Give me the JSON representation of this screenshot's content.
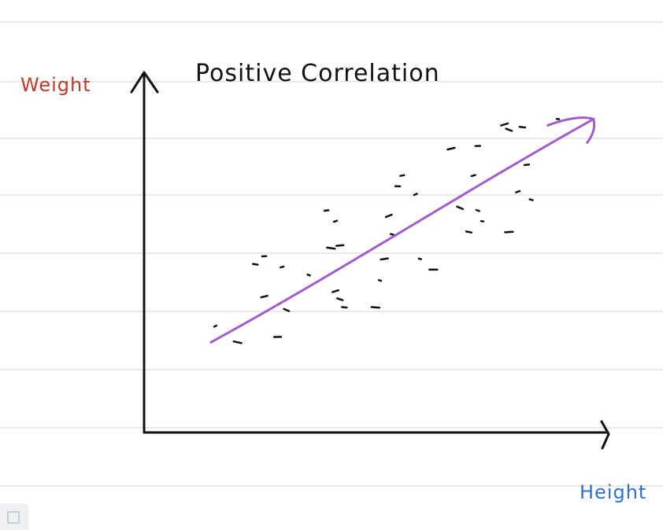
{
  "chart_data": {
    "type": "scatter",
    "title": "Positive Correlation",
    "xlabel": "Height",
    "ylabel": "Weight",
    "xlim": [
      0,
      100
    ],
    "ylim": [
      0,
      100
    ],
    "grid": false,
    "points": [
      {
        "x": 13,
        "y": 22
      },
      {
        "x": 18,
        "y": 16
      },
      {
        "x": 27,
        "y": 18
      },
      {
        "x": 24,
        "y": 33
      },
      {
        "x": 29,
        "y": 28
      },
      {
        "x": 22,
        "y": 45
      },
      {
        "x": 24,
        "y": 48
      },
      {
        "x": 28,
        "y": 44
      },
      {
        "x": 34,
        "y": 41
      },
      {
        "x": 39,
        "y": 51
      },
      {
        "x": 41,
        "y": 52
      },
      {
        "x": 40,
        "y": 35
      },
      {
        "x": 41,
        "y": 32
      },
      {
        "x": 42,
        "y": 29
      },
      {
        "x": 38,
        "y": 65
      },
      {
        "x": 40,
        "y": 61
      },
      {
        "x": 50,
        "y": 39
      },
      {
        "x": 49,
        "y": 29
      },
      {
        "x": 51,
        "y": 47
      },
      {
        "x": 52,
        "y": 63
      },
      {
        "x": 53,
        "y": 56
      },
      {
        "x": 54,
        "y": 74
      },
      {
        "x": 55,
        "y": 78
      },
      {
        "x": 58,
        "y": 71
      },
      {
        "x": 59,
        "y": 47
      },
      {
        "x": 62,
        "y": 43
      },
      {
        "x": 66,
        "y": 88
      },
      {
        "x": 68,
        "y": 66
      },
      {
        "x": 70,
        "y": 57
      },
      {
        "x": 72,
        "y": 89
      },
      {
        "x": 71,
        "y": 78
      },
      {
        "x": 72,
        "y": 65
      },
      {
        "x": 73,
        "y": 61
      },
      {
        "x": 79,
        "y": 57
      },
      {
        "x": 78,
        "y": 97
      },
      {
        "x": 79,
        "y": 95
      },
      {
        "x": 82,
        "y": 96
      },
      {
        "x": 83,
        "y": 82
      },
      {
        "x": 81,
        "y": 72
      },
      {
        "x": 84,
        "y": 69
      },
      {
        "x": 90,
        "y": 99
      }
    ],
    "trend_line": {
      "from": {
        "x": 12,
        "y": 16
      },
      "to": {
        "x": 98,
        "y": 99
      },
      "color": "#a05fc8"
    },
    "colors": {
      "title": "#111111",
      "axes": "#111111",
      "points": "#111111",
      "ylabel": "#c0392b",
      "xlabel": "#2f6fd6",
      "ruled_lines": "#e3e3e3"
    }
  }
}
